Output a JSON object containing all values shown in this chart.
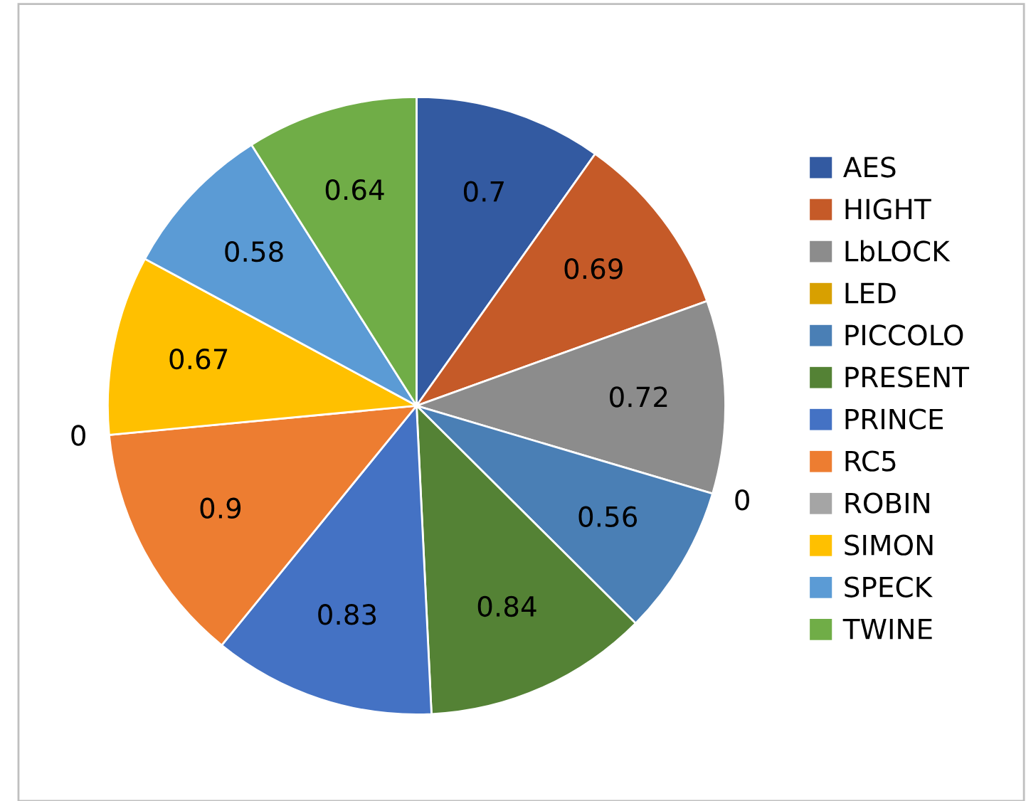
{
  "chart_data": {
    "type": "pie",
    "categories": [
      "AES",
      "HIGHT",
      "LbLOCK",
      "LED",
      "PICCOLO",
      "PRESENT",
      "PRINCE",
      "RC5",
      "ROBIN",
      "SIMON",
      "SPECK",
      "TWINE"
    ],
    "values": [
      0.7,
      0.69,
      0.72,
      0,
      0.56,
      0.84,
      0.83,
      0.9,
      0,
      0.67,
      0.58,
      0.64
    ],
    "colors": [
      "#335aa1",
      "#c55a28",
      "#8c8c8c",
      "#d8a000",
      "#4a7fb5",
      "#548235",
      "#4472c4",
      "#ed7d31",
      "#a5a5a5",
      "#ffc000",
      "#5b9bd5",
      "#70ad47"
    ],
    "value_labels": [
      "0.7",
      "0.69",
      "0.72",
      "0",
      "0.56",
      "0.84",
      "0.83",
      "0.9",
      "0",
      "0.67",
      "0.58",
      "0.64"
    ],
    "legend": "right"
  }
}
